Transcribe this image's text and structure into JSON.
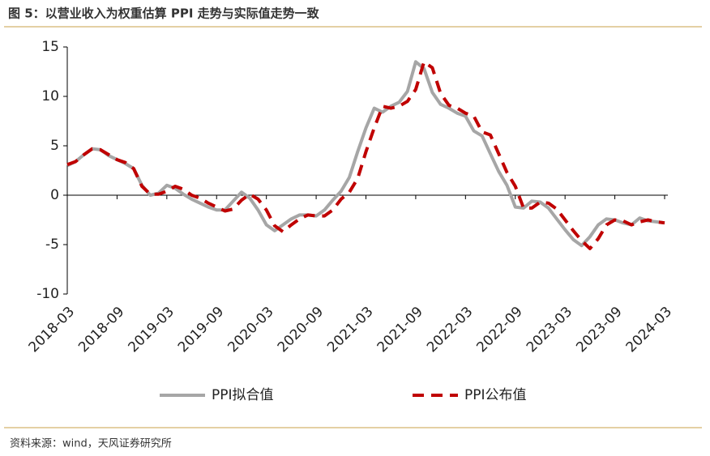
{
  "chart_data": {
    "type": "line",
    "title": "图 5：以营业收入为权重估算 PPI 走势与实际值走势一致",
    "source": "资料来源：wind，天风证券研究所",
    "categories": [
      "2018-03",
      null,
      null,
      null,
      null,
      null,
      "2018-09",
      null,
      null,
      null,
      null,
      null,
      "2019-03",
      null,
      null,
      null,
      null,
      null,
      "2019-09",
      null,
      null,
      null,
      null,
      null,
      "2020-03",
      null,
      null,
      null,
      null,
      null,
      "2020-09",
      null,
      null,
      null,
      null,
      null,
      "2021-03",
      null,
      null,
      null,
      null,
      null,
      "2021-09",
      null,
      null,
      null,
      null,
      null,
      "2022-03",
      null,
      null,
      null,
      null,
      null,
      "2022-09",
      null,
      null,
      null,
      null,
      null,
      "2023-03",
      null,
      null,
      null,
      null,
      null,
      "2023-09",
      null,
      null,
      null,
      null,
      null,
      "2024-03"
    ],
    "series": [
      {
        "name": "PPI拟合值",
        "color": "#a6a6a6",
        "dash": false,
        "values": [
          3.0,
          3.4,
          4.1,
          4.7,
          4.6,
          4.0,
          3.6,
          3.2,
          2.7,
          1.0,
          0.0,
          0.2,
          1.0,
          0.7,
          0.1,
          -0.4,
          -0.8,
          -1.2,
          -1.5,
          -1.5,
          -0.6,
          0.3,
          -0.3,
          -1.5,
          -3.0,
          -3.6,
          -3.0,
          -2.4,
          -2.0,
          -2.0,
          -2.1,
          -1.5,
          -0.5,
          0.4,
          1.8,
          4.4,
          6.8,
          8.8,
          8.4,
          9.0,
          9.4,
          10.5,
          13.5,
          12.8,
          10.4,
          9.2,
          8.8,
          8.3,
          8.0,
          6.5,
          6.0,
          4.2,
          2.4,
          1.0,
          -1.2,
          -1.3,
          -0.6,
          -0.7,
          -1.3,
          -2.4,
          -3.5,
          -4.5,
          -5.1,
          -4.2,
          -3.0,
          -2.4,
          -2.5,
          -2.8,
          -3.0,
          -2.3,
          -2.6,
          -2.7,
          -2.8
        ]
      },
      {
        "name": "PPI公布值",
        "color": "#c00000",
        "dash": true,
        "values": [
          3.1,
          3.4,
          4.1,
          4.7,
          4.6,
          4.1,
          3.6,
          3.3,
          2.7,
          0.9,
          0.1,
          0.1,
          0.4,
          0.9,
          0.6,
          0.0,
          -0.3,
          -0.8,
          -1.2,
          -1.6,
          -1.4,
          -0.5,
          0.1,
          -0.4,
          -1.5,
          -3.1,
          -3.7,
          -3.0,
          -2.4,
          -2.0,
          -2.1,
          -2.1,
          -1.5,
          -0.4,
          0.3,
          1.7,
          4.4,
          6.8,
          9.0,
          8.8,
          9.0,
          9.5,
          10.7,
          13.5,
          12.9,
          10.3,
          9.1,
          8.8,
          8.3,
          8.0,
          6.4,
          6.1,
          4.2,
          2.3,
          0.9,
          -1.3,
          -1.3,
          -0.7,
          -0.8,
          -1.4,
          -2.5,
          -3.6,
          -4.6,
          -5.4,
          -4.4,
          -3.0,
          -2.5,
          -2.6,
          -3.0,
          -2.7,
          -2.5,
          -2.7,
          -2.8
        ]
      }
    ],
    "ylim": [
      -10,
      15
    ],
    "yticks": [
      -10,
      -5,
      0,
      5,
      10,
      15
    ],
    "legend": "bottom"
  }
}
